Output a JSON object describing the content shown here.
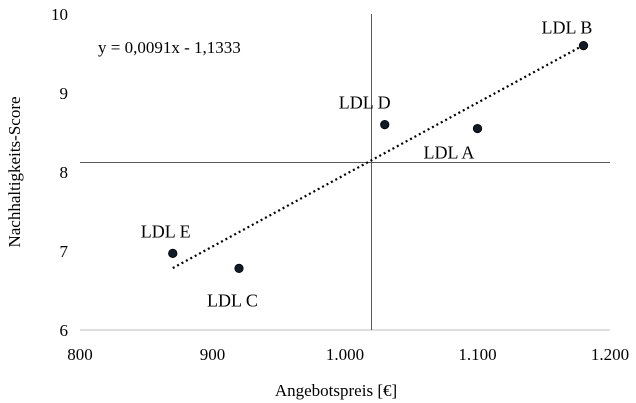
{
  "chart_data": {
    "type": "scatter",
    "xlabel": "Angebotspreis  [€]",
    "ylabel": "Nachhaltigkeits-Score",
    "xlim": [
      800,
      1200
    ],
    "ylim": [
      6,
      10
    ],
    "x_ticks": [
      800,
      900,
      1000,
      1100,
      1200
    ],
    "x_tick_labels": [
      "800",
      "900",
      "1.000",
      "1.100",
      "1.200"
    ],
    "y_ticks": [
      6,
      7,
      8,
      9,
      10
    ],
    "y_tick_labels": [
      "6",
      "7",
      "8",
      "9",
      "10"
    ],
    "points": [
      {
        "label": "LDL A",
        "x": 1100,
        "y": 8.55
      },
      {
        "label": "LDL B",
        "x": 1180,
        "y": 9.6
      },
      {
        "label": "LDL C",
        "x": 920,
        "y": 6.78
      },
      {
        "label": "LDL D",
        "x": 1030,
        "y": 8.6
      },
      {
        "label": "LDL E",
        "x": 870,
        "y": 6.97
      }
    ],
    "trendline": {
      "equation": "y = 0,0091x - 1,1333",
      "slope": 0.0091,
      "intercept": -1.1333,
      "x_range": [
        870,
        1180
      ],
      "style": "dotted"
    },
    "reference_lines": {
      "x": 1020,
      "y": 8.12
    },
    "grid": false,
    "legend": "none",
    "marker_color": "#0d1b2a"
  }
}
